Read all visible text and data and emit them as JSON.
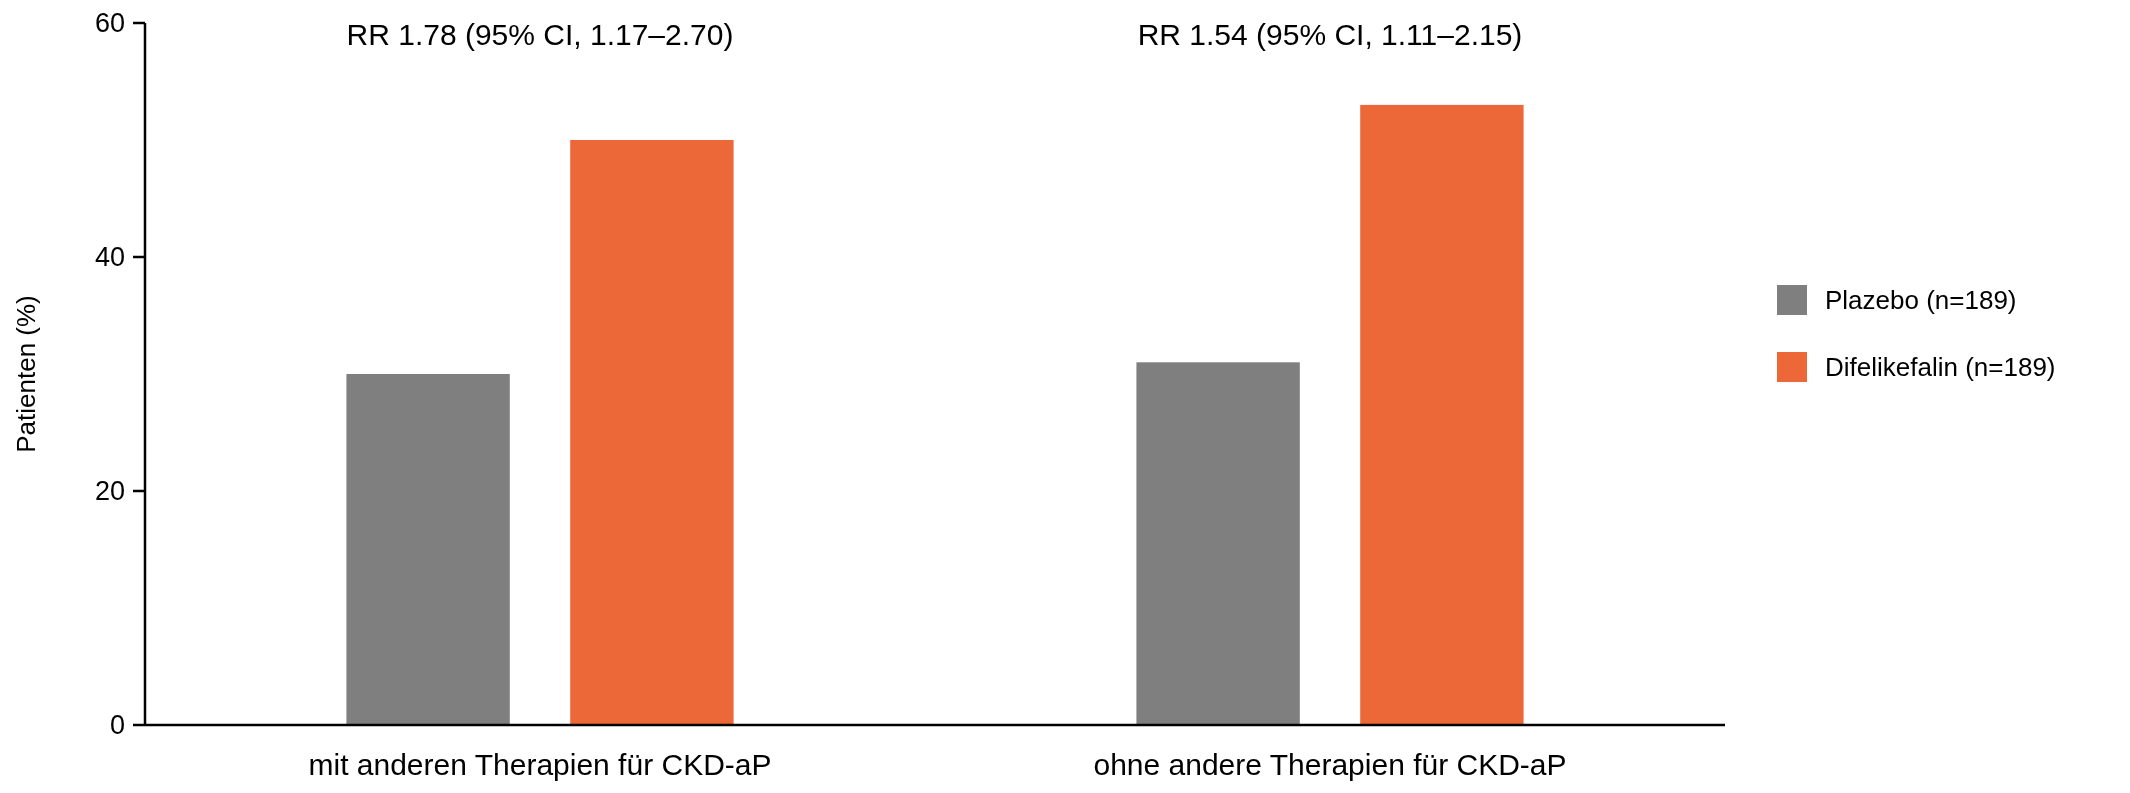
{
  "chart_data": {
    "type": "bar",
    "ylabel": "Patienten (%)",
    "categories": [
      "mit anderen Therapien für CKD-aP",
      "ohne andere Therapien für CKD-aP"
    ],
    "series": [
      {
        "name": "Plazebo (n=189)",
        "color": "#7f7f7f",
        "values": [
          30,
          31
        ]
      },
      {
        "name": "Difelikefalin (n=189)",
        "color": "#ec6839",
        "values": [
          50,
          53
        ]
      }
    ],
    "ylim": [
      0,
      60
    ],
    "yticks": [
      0,
      20,
      40,
      60
    ],
    "grid": false,
    "legend": "right",
    "annotations": [
      "RR 1.78 (95% CI, 1.17–2.70)",
      "RR 1.54 (95% CI, 1.11–2.15)"
    ]
  }
}
